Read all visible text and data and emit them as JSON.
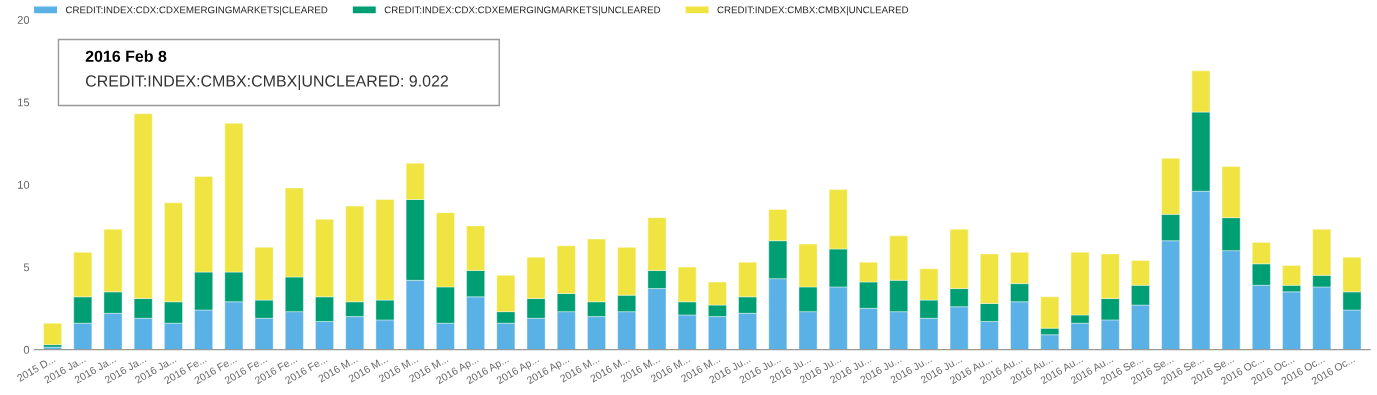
{
  "chart_data": {
    "type": "bar",
    "stacked": true,
    "categories": [
      "2015 D...",
      "2016 Ja...",
      "2016 Ja...",
      "2016 Ja...",
      "2016 Ja...",
      "2016 Fe...",
      "2016 Fe...",
      "2016 Fe...",
      "2016 Fe...",
      "2016 Fe...",
      "2016 M...",
      "2016 M...",
      "2016 M...",
      "2016 M...",
      "2016 Ap...",
      "2016 Ap...",
      "2016 Ap...",
      "2016 Ap...",
      "2016 M...",
      "2016 M...",
      "2016 M...",
      "2016 M...",
      "2016 M...",
      "2016 Ju...",
      "2016 Ju...",
      "2016 Ju...",
      "2016 Ju...",
      "2016 Ju...",
      "2016 Ju...",
      "2016 Ju...",
      "2016 Ju...",
      "2016 Au...",
      "2016 Au...",
      "2016 Au...",
      "2016 Au...",
      "2016 Au...",
      "2016 Se...",
      "2016 Se...",
      "2016 Se...",
      "2016 Se...",
      "2016 Oc...",
      "2016 Oc...",
      "2016 Oc...",
      "2016 Oc..."
    ],
    "series": [
      {
        "name": "CREDIT:INDEX:CDX:CDXEMERGINGMARKETS|CLEARED",
        "color": "#5ab1e6",
        "values": [
          0.15,
          1.6,
          2.2,
          1.9,
          1.6,
          2.4,
          2.9,
          1.9,
          2.3,
          1.7,
          2.0,
          1.8,
          4.2,
          1.6,
          3.2,
          1.6,
          1.9,
          2.3,
          2.0,
          2.3,
          3.7,
          2.1,
          2.0,
          2.2,
          4.3,
          2.3,
          3.8,
          2.5,
          2.3,
          1.9,
          2.6,
          1.7,
          2.9,
          0.9,
          1.6,
          1.8,
          2.7,
          6.6,
          9.6,
          6.0,
          3.9,
          3.5,
          3.8,
          2.4
        ]
      },
      {
        "name": "CREDIT:INDEX:CDX:CDXEMERGINGMARKETS|UNCLEARED",
        "color": "#009e73",
        "values": [
          0.15,
          1.6,
          1.3,
          1.2,
          1.3,
          2.3,
          1.8,
          1.1,
          2.1,
          1.5,
          0.9,
          1.2,
          4.9,
          2.2,
          1.6,
          0.7,
          1.2,
          1.1,
          0.9,
          1.0,
          1.1,
          0.8,
          0.7,
          1.0,
          2.3,
          1.5,
          2.3,
          1.6,
          1.9,
          1.1,
          1.1,
          1.1,
          1.1,
          0.4,
          0.5,
          1.3,
          1.2,
          1.6,
          4.8,
          2.0,
          1.3,
          0.4,
          0.7,
          1.1
        ]
      },
      {
        "name": "CREDIT:INDEX:CMBX:CMBX|UNCLEARED",
        "color": "#f0e442",
        "values": [
          1.3,
          2.7,
          3.8,
          11.2,
          6.0,
          5.8,
          9.022,
          3.2,
          5.4,
          4.7,
          5.8,
          6.1,
          2.2,
          4.5,
          2.7,
          2.2,
          2.5,
          2.9,
          3.8,
          2.9,
          3.2,
          2.1,
          1.4,
          2.1,
          1.9,
          2.6,
          3.6,
          1.2,
          2.7,
          1.9,
          3.6,
          3.0,
          1.9,
          1.9,
          3.8,
          2.7,
          1.5,
          3.4,
          2.5,
          3.1,
          1.3,
          1.2,
          2.8,
          2.1
        ]
      }
    ],
    "ylim": [
      0,
      20
    ],
    "yticks": [
      0,
      5,
      10,
      15,
      20
    ],
    "grid": false,
    "legend": "top left",
    "annotations": [
      "2016 Feb 8",
      "CREDIT:INDEX:CMBX:CMBX|UNCLEARED: 9.022"
    ]
  }
}
